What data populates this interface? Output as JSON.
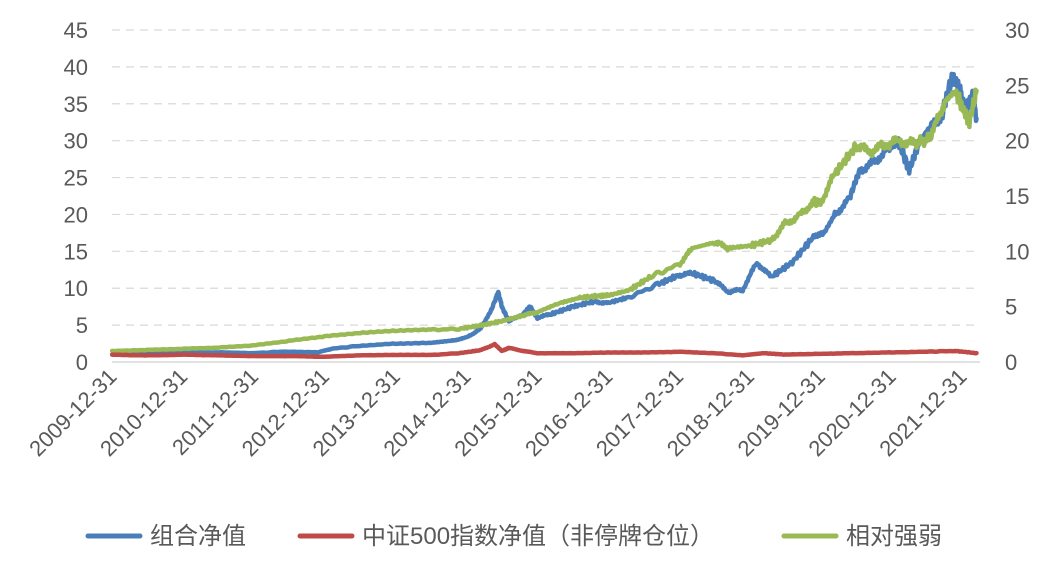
{
  "chart_data": {
    "type": "line",
    "title": "",
    "xlabel": "",
    "ylabel": "",
    "x_tick_labels": [
      "2009-12-31",
      "2010-12-31",
      "2011-12-31",
      "2012-12-31",
      "2013-12-31",
      "2014-12-31",
      "2015-12-31",
      "2016-12-31",
      "2017-12-31",
      "2018-12-31",
      "2019-12-31",
      "2020-12-31",
      "2021-12-31"
    ],
    "x_range": [
      2009.997,
      2022.25
    ],
    "y_left": {
      "range": [
        0,
        45
      ],
      "ticks": [
        0,
        5,
        10,
        15,
        20,
        25,
        30,
        35,
        40,
        45
      ]
    },
    "y_right": {
      "range": [
        0,
        30
      ],
      "ticks": [
        0,
        5,
        10,
        15,
        20,
        25,
        30
      ]
    },
    "grid": true,
    "legend_position": "bottom",
    "series": [
      {
        "name": "组合净值",
        "axis": "left",
        "color": "#4a7ebb",
        "points": [
          [
            2010.0,
            1.0
          ],
          [
            2010.5,
            1.1
          ],
          [
            2011.0,
            1.3
          ],
          [
            2011.5,
            1.3
          ],
          [
            2012.0,
            1.2
          ],
          [
            2012.4,
            1.4
          ],
          [
            2012.9,
            1.3
          ],
          [
            2013.1,
            1.8
          ],
          [
            2013.5,
            2.2
          ],
          [
            2014.0,
            2.5
          ],
          [
            2014.5,
            2.6
          ],
          [
            2014.8,
            2.9
          ],
          [
            2015.0,
            3.3
          ],
          [
            2015.2,
            4.5
          ],
          [
            2015.35,
            7.0
          ],
          [
            2015.45,
            9.5
          ],
          [
            2015.5,
            7.5
          ],
          [
            2015.6,
            5.5
          ],
          [
            2015.8,
            6.5
          ],
          [
            2015.9,
            7.5
          ],
          [
            2016.0,
            6.0
          ],
          [
            2016.2,
            6.5
          ],
          [
            2016.5,
            7.5
          ],
          [
            2016.8,
            8.2
          ],
          [
            2017.0,
            8.0
          ],
          [
            2017.3,
            8.8
          ],
          [
            2017.7,
            10.5
          ],
          [
            2018.0,
            11.8
          ],
          [
            2018.2,
            12.0
          ],
          [
            2018.5,
            11.0
          ],
          [
            2018.7,
            9.5
          ],
          [
            2018.9,
            9.8
          ],
          [
            2019.1,
            13.5
          ],
          [
            2019.3,
            11.5
          ],
          [
            2019.6,
            13.5
          ],
          [
            2019.9,
            17.0
          ],
          [
            2020.05,
            17.5
          ],
          [
            2020.2,
            20.0
          ],
          [
            2020.4,
            22.0
          ],
          [
            2020.55,
            26.0
          ],
          [
            2020.75,
            27.0
          ],
          [
            2020.95,
            29.0
          ],
          [
            2021.1,
            30.0
          ],
          [
            2021.25,
            26.0
          ],
          [
            2021.4,
            30.0
          ],
          [
            2021.55,
            32.0
          ],
          [
            2021.7,
            33.0
          ],
          [
            2021.85,
            38.5
          ],
          [
            2021.95,
            37.5
          ],
          [
            2022.05,
            34.0
          ],
          [
            2022.15,
            36.5
          ],
          [
            2022.2,
            33.0
          ]
        ]
      },
      {
        "name": "中证500指数净值（非停牌仓位）",
        "axis": "left",
        "color": "#be4b48",
        "points": [
          [
            2010.0,
            1.0
          ],
          [
            2010.5,
            0.9
          ],
          [
            2011.0,
            1.0
          ],
          [
            2011.5,
            0.9
          ],
          [
            2012.0,
            0.8
          ],
          [
            2012.5,
            0.8
          ],
          [
            2013.0,
            0.7
          ],
          [
            2013.5,
            0.9
          ],
          [
            2014.0,
            0.95
          ],
          [
            2014.5,
            0.95
          ],
          [
            2014.9,
            1.2
          ],
          [
            2015.2,
            1.6
          ],
          [
            2015.4,
            2.4
          ],
          [
            2015.5,
            1.5
          ],
          [
            2015.6,
            1.9
          ],
          [
            2015.8,
            1.5
          ],
          [
            2016.0,
            1.2
          ],
          [
            2016.5,
            1.2
          ],
          [
            2017.0,
            1.3
          ],
          [
            2017.5,
            1.3
          ],
          [
            2018.0,
            1.4
          ],
          [
            2018.5,
            1.2
          ],
          [
            2018.9,
            0.9
          ],
          [
            2019.2,
            1.2
          ],
          [
            2019.5,
            1.0
          ],
          [
            2020.0,
            1.1
          ],
          [
            2020.5,
            1.2
          ],
          [
            2021.0,
            1.3
          ],
          [
            2021.5,
            1.4
          ],
          [
            2021.9,
            1.5
          ],
          [
            2022.2,
            1.2
          ]
        ]
      },
      {
        "name": "相对强弱",
        "axis": "right",
        "color": "#98b954",
        "points": [
          [
            2010.0,
            1.0
          ],
          [
            2010.5,
            1.1
          ],
          [
            2011.0,
            1.2
          ],
          [
            2011.5,
            1.3
          ],
          [
            2012.0,
            1.5
          ],
          [
            2012.5,
            1.9
          ],
          [
            2013.0,
            2.3
          ],
          [
            2013.5,
            2.6
          ],
          [
            2014.0,
            2.8
          ],
          [
            2014.5,
            2.9
          ],
          [
            2014.9,
            3.0
          ],
          [
            2015.2,
            3.3
          ],
          [
            2015.5,
            3.7
          ],
          [
            2015.8,
            4.2
          ],
          [
            2016.0,
            4.5
          ],
          [
            2016.3,
            5.3
          ],
          [
            2016.6,
            5.8
          ],
          [
            2016.9,
            6.0
          ],
          [
            2017.0,
            6.0
          ],
          [
            2017.3,
            6.5
          ],
          [
            2017.6,
            7.7
          ],
          [
            2018.0,
            8.8
          ],
          [
            2018.2,
            10.3
          ],
          [
            2018.5,
            10.8
          ],
          [
            2018.7,
            10.3
          ],
          [
            2019.0,
            10.5
          ],
          [
            2019.3,
            11.0
          ],
          [
            2019.5,
            12.5
          ],
          [
            2019.7,
            13.2
          ],
          [
            2019.9,
            14.5
          ],
          [
            2020.0,
            14.4
          ],
          [
            2020.2,
            17.0
          ],
          [
            2020.5,
            19.5
          ],
          [
            2020.7,
            19.0
          ],
          [
            2020.9,
            19.6
          ],
          [
            2021.1,
            20.0
          ],
          [
            2021.3,
            19.7
          ],
          [
            2021.55,
            20.2
          ],
          [
            2021.75,
            23.5
          ],
          [
            2021.9,
            24.5
          ],
          [
            2022.0,
            23.0
          ],
          [
            2022.1,
            21.7
          ],
          [
            2022.2,
            24.5
          ]
        ]
      }
    ]
  }
}
